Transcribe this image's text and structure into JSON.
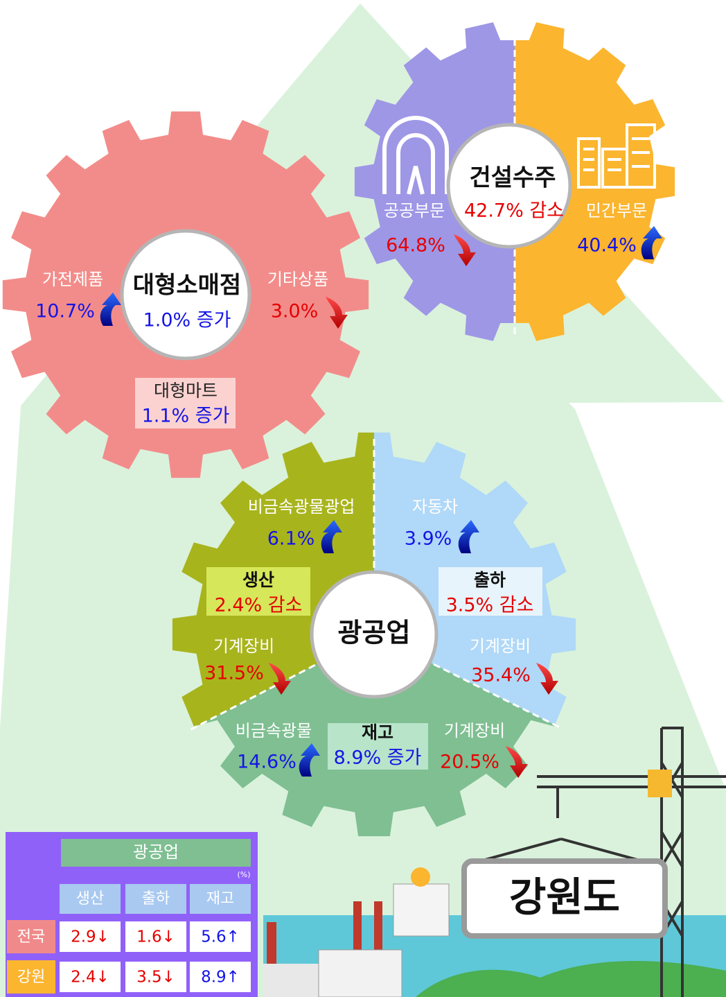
{
  "region": "강원도",
  "construction": {
    "title": "건설수주",
    "summary": "42.7% 감소",
    "public": {
      "label": "공공부문",
      "value": "64.8%"
    },
    "private": {
      "label": "민간부문",
      "value": "40.4%"
    }
  },
  "retail": {
    "title": "대형소매점",
    "summary": "1.0% 증가",
    "appliances": {
      "label": "가전제품",
      "value": "10.7%"
    },
    "other_goods": {
      "label": "기타상품",
      "value": "3.0%"
    },
    "mart": {
      "label": "대형마트",
      "value": "1.1% 증가"
    }
  },
  "mining": {
    "title": "광공업",
    "production": {
      "title": "생산",
      "summary": "2.4% 감소",
      "items": [
        {
          "label": "비금속광물광업",
          "value": "6.1%"
        },
        {
          "label": "기계장비",
          "value": "31.5%"
        }
      ]
    },
    "shipment": {
      "title": "출하",
      "summary": "3.5% 감소",
      "items": [
        {
          "label": "자동차",
          "value": "3.9%"
        },
        {
          "label": "기계장비",
          "value": "35.4%"
        }
      ]
    },
    "inventory": {
      "title": "재고",
      "summary": "8.9% 증가",
      "items": [
        {
          "label": "비금속광물",
          "value": "14.6%"
        },
        {
          "label": "기계장비",
          "value": "20.5%"
        }
      ]
    }
  },
  "table": {
    "title": "광공업",
    "unit": "(%)",
    "columns": [
      "생산",
      "출하",
      "재고"
    ],
    "rows": [
      {
        "name": "전국",
        "cells": [
          "2.9↓",
          "1.6↓",
          "5.6↑"
        ]
      },
      {
        "name": "강원",
        "cells": [
          "2.4↓",
          "3.5↓",
          "8.9↑"
        ]
      }
    ]
  }
}
